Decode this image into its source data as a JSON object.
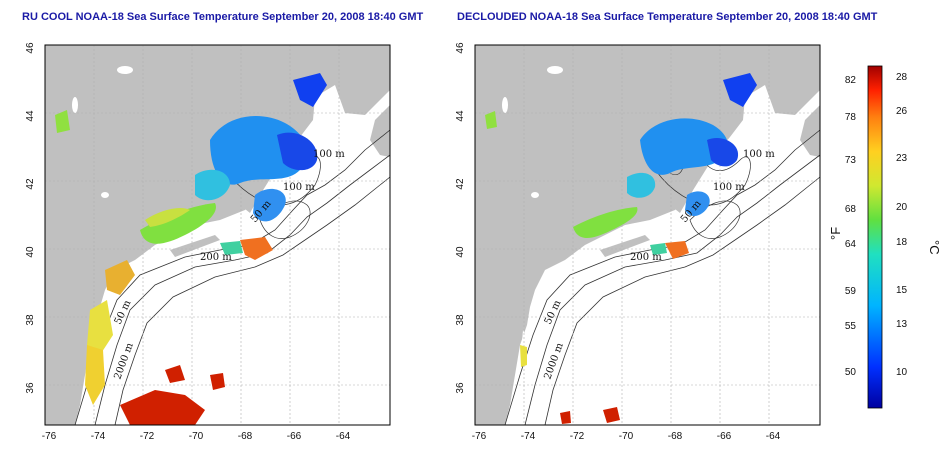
{
  "left_map": {
    "title": "RU COOL NOAA-18 Sea Surface Temperature September 20, 2008 18:40 GMT"
  },
  "right_map": {
    "title": "DECLOUDED NOAA-18 Sea Surface Temperature September 20, 2008 18:40 GMT"
  },
  "axes": {
    "lon_ticks": [
      "-76",
      "-74",
      "-72",
      "-70",
      "-68",
      "-66",
      "-64"
    ],
    "lat_ticks": [
      "46",
      "44",
      "42",
      "40",
      "38",
      "36"
    ]
  },
  "contour_labels": {
    "c100a": "100 m",
    "c100b": "100 m",
    "c50a": "50 m",
    "c200": "200 m",
    "c50b": "50 m",
    "c2000": "2000 m"
  },
  "colorbar": {
    "fahrenheit_unit": "°F",
    "celsius_unit": "°C",
    "fahrenheit_ticks": [
      "82",
      "78",
      "73",
      "68",
      "64",
      "59",
      "55",
      "50"
    ],
    "celsius_ticks": [
      "28",
      "26",
      "23",
      "20",
      "18",
      "15",
      "13",
      "10"
    ]
  },
  "colors": {
    "land": "#c0c0c0",
    "ocean": "#ffffff",
    "grid": "#b0b0b0",
    "title": "#1a1aa6"
  }
}
